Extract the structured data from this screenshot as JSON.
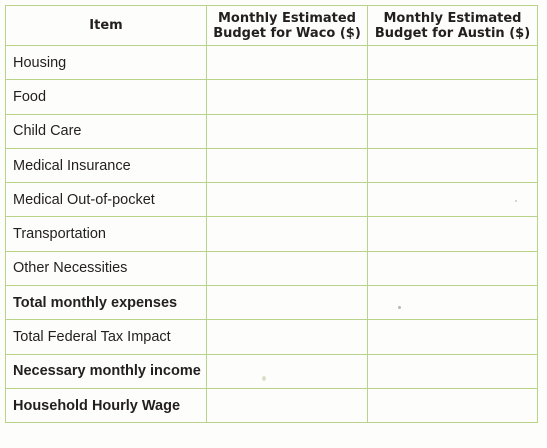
{
  "table": {
    "headers": {
      "item": "Item",
      "waco_line1": "Monthly Estimated",
      "waco_line2": "Budget for Waco ($)",
      "austin_line1": "Monthly Estimated",
      "austin_line2": "Budget for Austin ($)"
    },
    "rows": [
      {
        "label": "Housing",
        "bold": false,
        "waco": "",
        "austin": ""
      },
      {
        "label": "Food",
        "bold": false,
        "waco": "",
        "austin": ""
      },
      {
        "label": "Child Care",
        "bold": false,
        "waco": "",
        "austin": ""
      },
      {
        "label": "Medical Insurance",
        "bold": false,
        "waco": "",
        "austin": ""
      },
      {
        "label": "Medical Out-of-pocket",
        "bold": false,
        "waco": "",
        "austin": ""
      },
      {
        "label": "Transportation",
        "bold": false,
        "waco": "",
        "austin": ""
      },
      {
        "label": "Other Necessities",
        "bold": false,
        "waco": "",
        "austin": ""
      },
      {
        "label": "Total monthly expenses",
        "bold": true,
        "waco": "",
        "austin": ""
      },
      {
        "label": "Total Federal Tax Impact",
        "bold": false,
        "waco": "",
        "austin": ""
      },
      {
        "label": "Necessary monthly income",
        "bold": true,
        "waco": "",
        "austin": ""
      },
      {
        "label": "Household Hourly Wage",
        "bold": true,
        "waco": "",
        "austin": ""
      }
    ]
  },
  "colors": {
    "border": "#b9d38a",
    "text": "#231f20"
  }
}
